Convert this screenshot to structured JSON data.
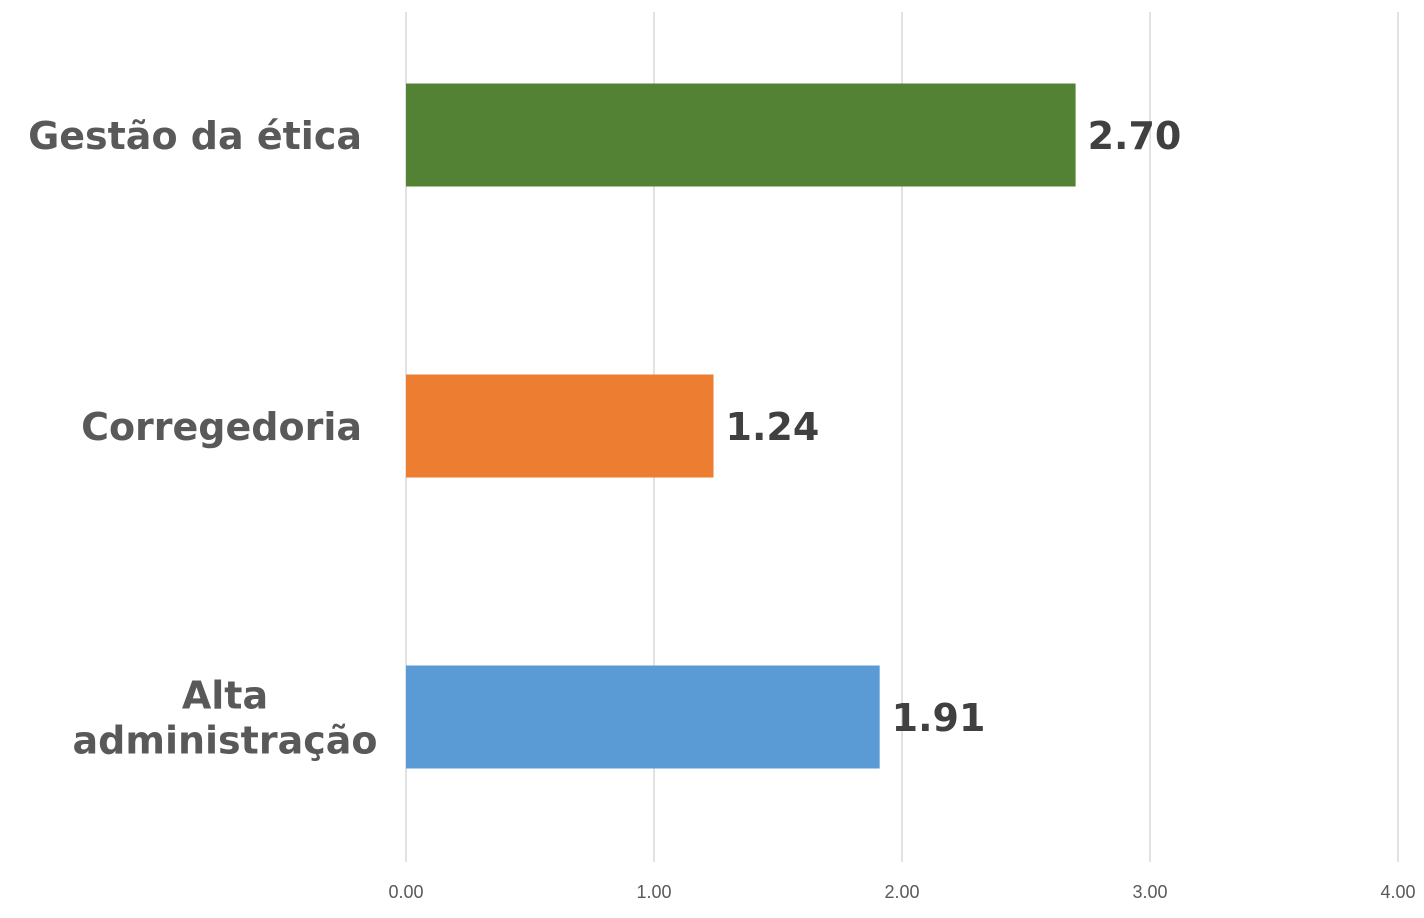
{
  "chart_data": {
    "type": "bar",
    "orientation": "horizontal",
    "categories": [
      "Gestão da ética",
      "Corregedoria",
      "Alta administração"
    ],
    "category_lines": [
      [
        "Gestão da ética"
      ],
      [
        "Corregedoria"
      ],
      [
        "Alta",
        "administração"
      ]
    ],
    "values": [
      2.7,
      1.24,
      1.91
    ],
    "value_labels": [
      "2.70",
      "1.24",
      "1.91"
    ],
    "colors": [
      "#548235",
      "#ed7d31",
      "#5b9bd5"
    ],
    "title": "",
    "xlabel": "",
    "ylabel": "",
    "xlim": [
      0,
      4
    ],
    "x_ticks": [
      0,
      1,
      2,
      3,
      4
    ],
    "x_tick_labels": [
      "0.00",
      "1.00",
      "2.00",
      "3.00",
      "4.00"
    ],
    "grid": "vertical",
    "legend": "none"
  }
}
